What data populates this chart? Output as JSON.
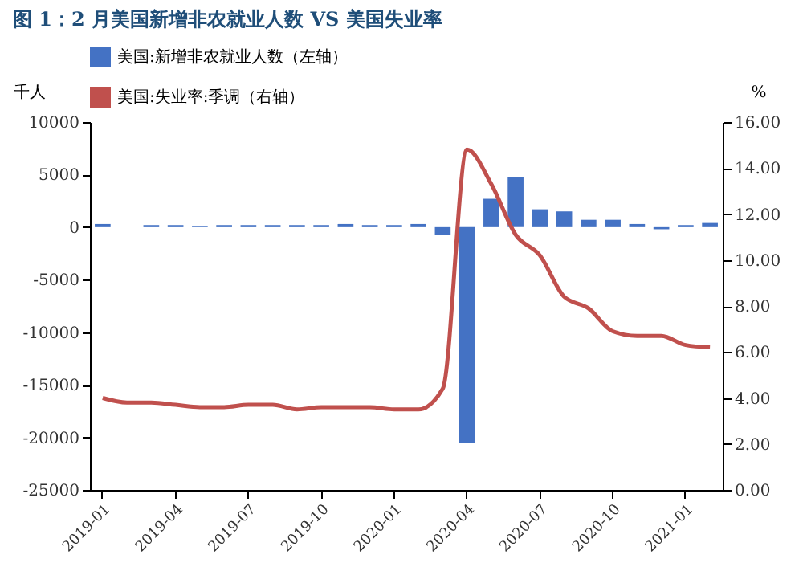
{
  "chart_data": {
    "type": "bar",
    "title": "图 1：2 月美国新增非农就业人数 VS 美国失业率",
    "categories": [
      "2019-01",
      null,
      null,
      "2019-04",
      null,
      null,
      "2019-07",
      null,
      null,
      "2019-10",
      null,
      null,
      "2020-01",
      null,
      null,
      "2020-04",
      null,
      null,
      "2020-07",
      null,
      null,
      "2020-10",
      null,
      null,
      "2021-01",
      null
    ],
    "series": [
      {
        "name": "美国:新增非农就业人数（左轴）",
        "axis": "y",
        "color": "#4472c4",
        "values": [
          300,
          0,
          200,
          200,
          100,
          200,
          200,
          200,
          200,
          200,
          300,
          200,
          200,
          300,
          -700,
          -20500,
          2700,
          4800,
          1700,
          1500,
          700,
          700,
          300,
          -200,
          200,
          400
        ]
      },
      {
        "name": "美国:失业率:季调（右轴）",
        "type": "line",
        "axis": "y2",
        "color": "#c0504d",
        "values": [
          4.0,
          3.8,
          3.8,
          3.7,
          3.6,
          3.6,
          3.7,
          3.7,
          3.5,
          3.6,
          3.6,
          3.6,
          3.5,
          3.5,
          4.4,
          14.8,
          13.3,
          11.1,
          10.2,
          8.4,
          7.9,
          6.9,
          6.7,
          6.7,
          6.3,
          6.2
        ]
      }
    ],
    "ylabel": "千人",
    "y2label": "%",
    "ylim": [
      -25000,
      10000
    ],
    "yticks": [
      -25000,
      -20000,
      -15000,
      -10000,
      -5000,
      0,
      5000,
      10000
    ],
    "y2lim": [
      0,
      16
    ],
    "y2ticks": [
      {
        "value": 0,
        "label": "0.00"
      },
      {
        "value": 2,
        "label": "2.00"
      },
      {
        "value": 4,
        "label": "4.00"
      },
      {
        "value": 6,
        "label": "6.00"
      },
      {
        "value": 8,
        "label": "8.00"
      },
      {
        "value": 10,
        "label": "10.00"
      },
      {
        "value": 12,
        "label": "12.00"
      },
      {
        "value": 14,
        "label": "14.00"
      },
      {
        "value": 16,
        "label": "16.00"
      }
    ],
    "grid": false,
    "legend": "top"
  }
}
